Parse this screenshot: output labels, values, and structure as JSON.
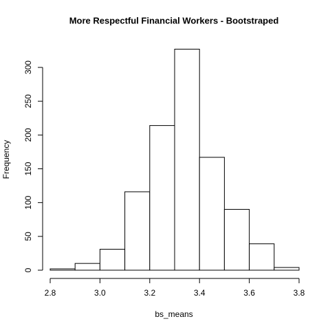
{
  "chart_data": {
    "type": "histogram",
    "title": "More Respectful Financial Workers - Bootstraped",
    "x_label": "bs_means",
    "y_label": "Frequency",
    "bins": [
      2.8,
      2.9,
      3.0,
      3.1,
      3.2,
      3.3,
      3.4,
      3.5,
      3.6,
      3.7,
      3.8
    ],
    "values": [
      2,
      10,
      31,
      116,
      214,
      327,
      167,
      90,
      39,
      4
    ],
    "color": "#ffffff",
    "edge_color": "#000000",
    "xlim": [
      2.8,
      3.8
    ],
    "xticks": [
      2.8,
      {
        "value": 3,
        "label": "3.0"
      },
      3.2,
      3.4,
      3.6,
      3.8
    ],
    "ylim": [
      0,
      327
    ],
    "yticks": [
      0,
      50,
      100,
      150,
      200,
      250,
      300
    ],
    "grid": false
  }
}
